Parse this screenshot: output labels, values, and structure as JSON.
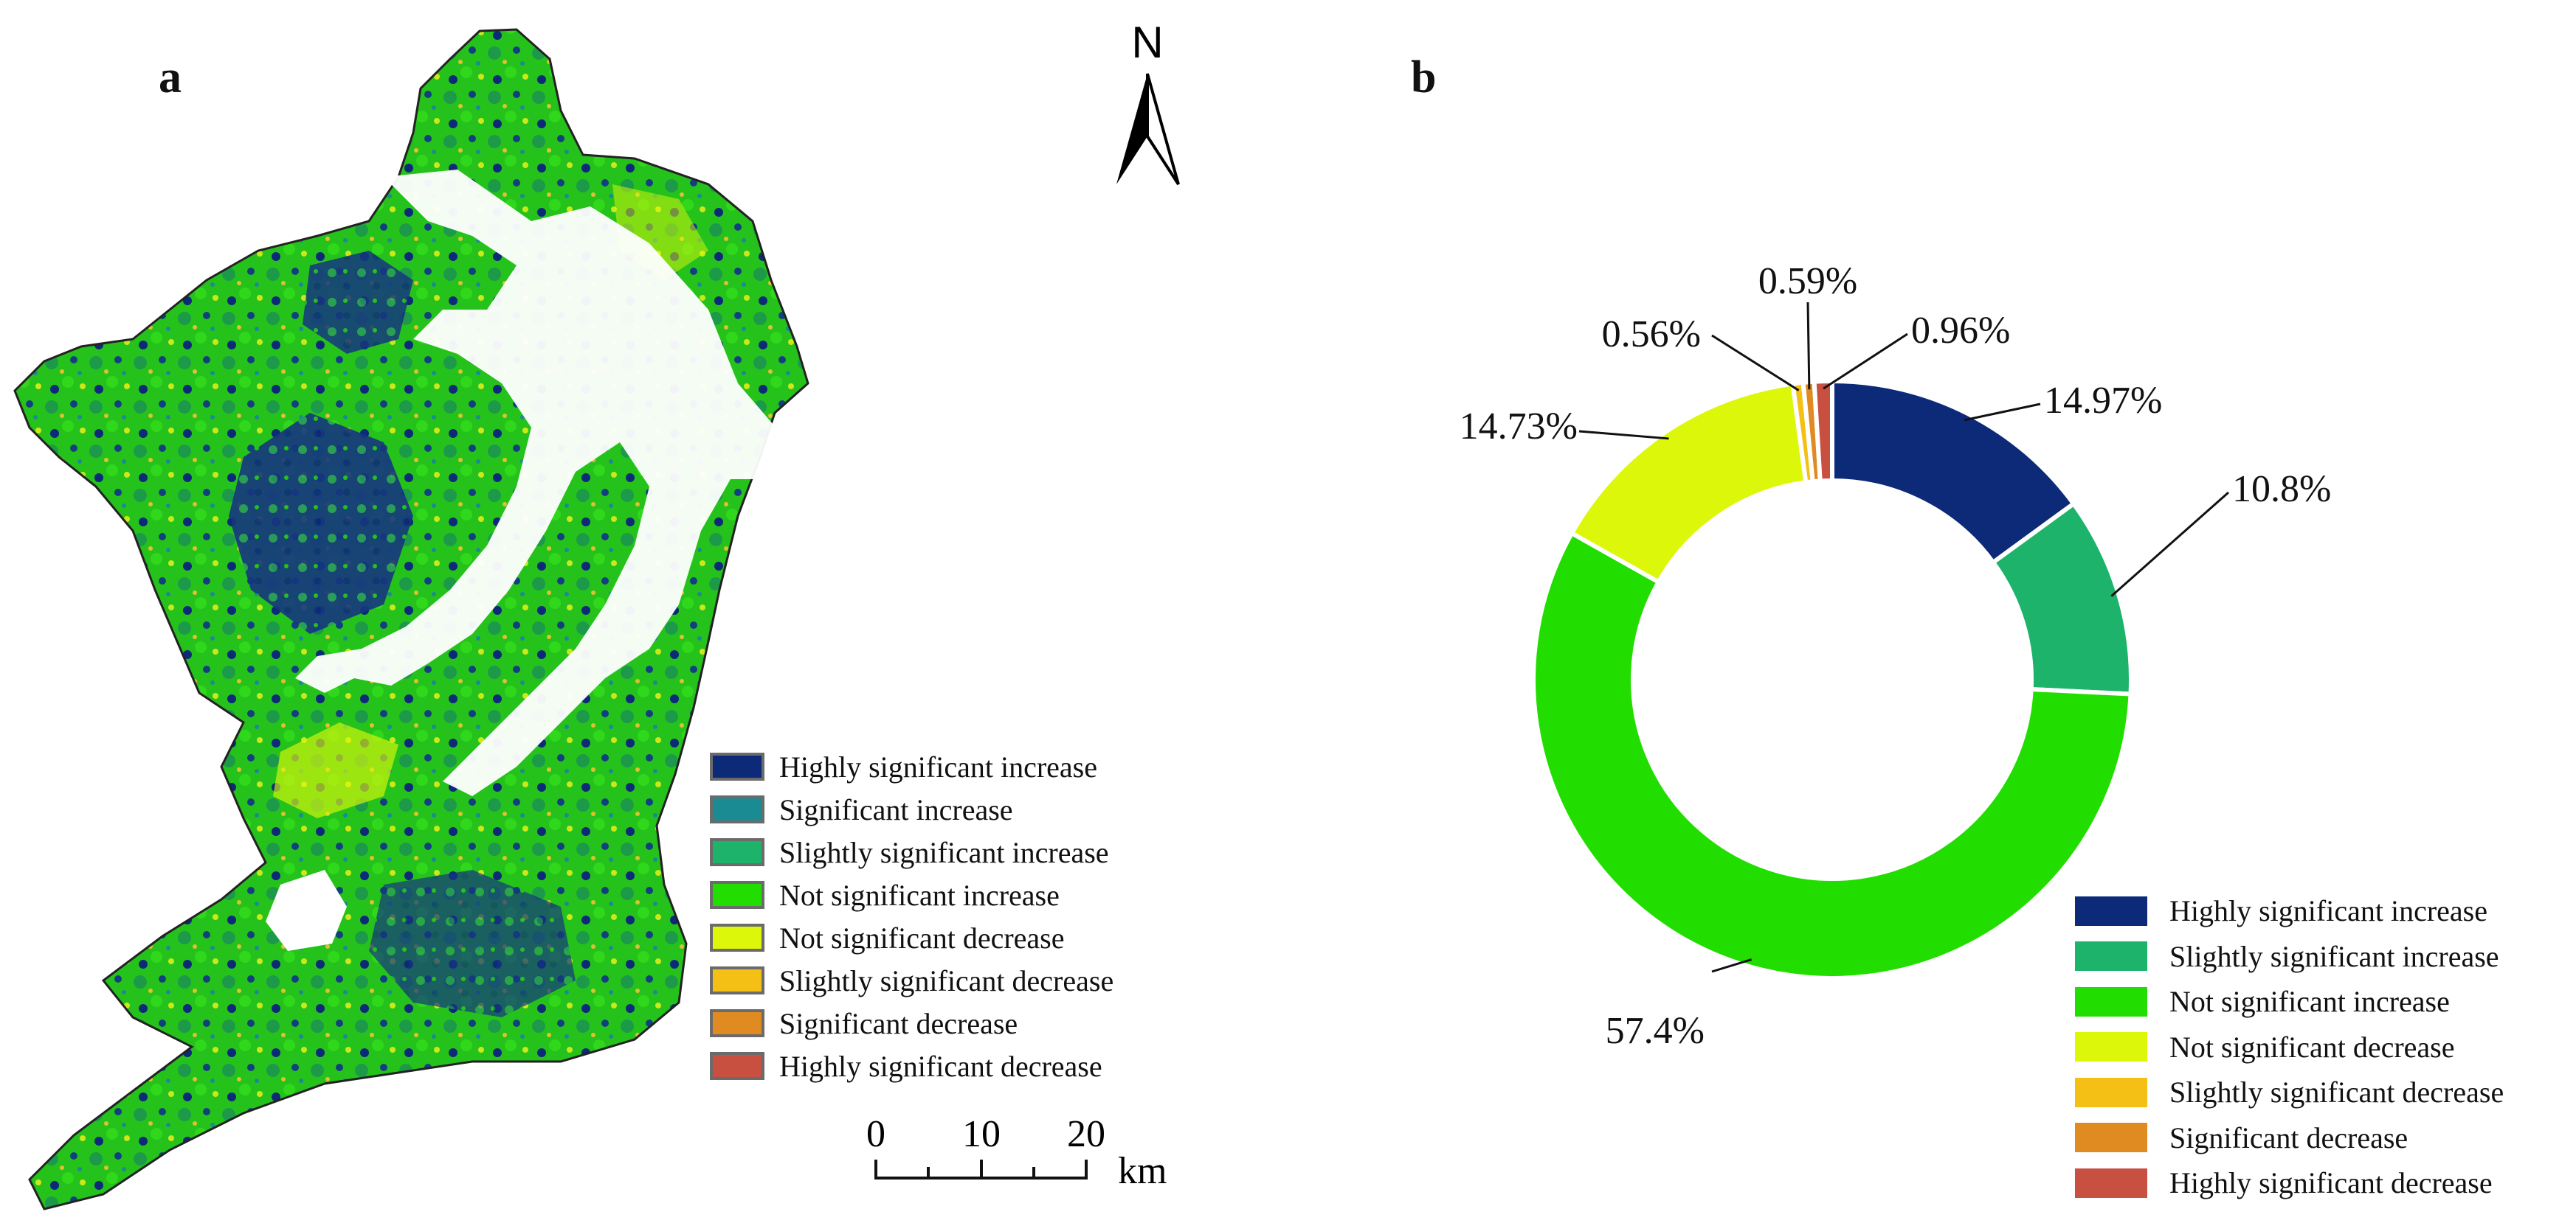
{
  "panels": {
    "a_label": "a",
    "b_label": "b"
  },
  "north_arrow": {
    "letter": "N"
  },
  "map_legend": [
    {
      "label": "Highly significant increase",
      "color": "#0c2a78"
    },
    {
      "label": "Significant increase",
      "color": "#1a8a93"
    },
    {
      "label": "Slightly significant increase",
      "color": "#1db36a"
    },
    {
      "label": "Not significant increase",
      "color": "#22dd00"
    },
    {
      "label": "Not significant decrease",
      "color": "#ddf70a"
    },
    {
      "label": "Slightly significant decrease",
      "color": "#f5c015"
    },
    {
      "label": "Significant decrease",
      "color": "#e08a22"
    },
    {
      "label": "Highly significant decrease",
      "color": "#c85040"
    }
  ],
  "scale_bar": {
    "ticks": [
      "0",
      "10",
      "20"
    ],
    "unit": "km"
  },
  "chart_data": {
    "type": "pie",
    "variant": "donut",
    "categories": [
      "Highly significant increase",
      "Slightly significant increase",
      "Not significant increase",
      "Not significant decrease",
      "Slightly significant decrease",
      "Significant decrease",
      "Highly significant decrease"
    ],
    "values": [
      14.97,
      10.8,
      57.4,
      14.73,
      0.56,
      0.59,
      0.96
    ],
    "data_labels": [
      "14.97%",
      "10.8%",
      "57.4%",
      "14.73%",
      "0.56%",
      "0.59%",
      "0.96%"
    ],
    "colors": [
      "#0c2a78",
      "#1db36a",
      "#22dd00",
      "#ddf70a",
      "#f5c015",
      "#e08a22",
      "#c85040"
    ],
    "legend_position": "bottom-right"
  }
}
